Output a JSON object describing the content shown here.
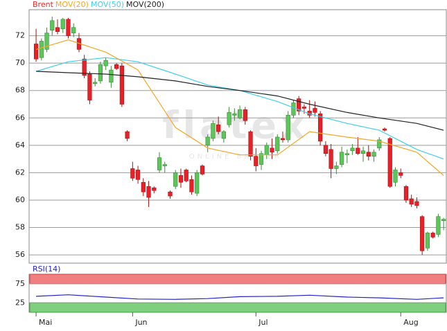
{
  "chart_data": {
    "type": "candlestick",
    "watermark": "flatex",
    "watermark_sub": "ONLINE BROKER",
    "xlim": [
      -1.3,
      76.5
    ],
    "xticks": [
      {
        "value": 0,
        "label": "Mai"
      },
      {
        "value": 18,
        "label": "Jun"
      },
      {
        "value": 41,
        "label": "Jul"
      },
      {
        "value": 68,
        "label": "Aug"
      }
    ],
    "ylim": [
      55.4,
      73.9
    ],
    "yticks": [
      56,
      58,
      60,
      62,
      64,
      66,
      68,
      70,
      72
    ],
    "grid": true,
    "up_color": "#5cc65a",
    "down_color": "#e8202a",
    "series": [
      {
        "name": "Brent",
        "color": "#e32b2b",
        "ohlc": [
          [
            71.4,
            72.5,
            70.1,
            70.3
          ],
          [
            70.4,
            71.8,
            70.2,
            71.6
          ],
          [
            71.0,
            72.6,
            70.8,
            72.2
          ],
          [
            72.4,
            73.4,
            72.0,
            73.1
          ],
          [
            72.6,
            73.2,
            72.1,
            72.3
          ],
          [
            72.5,
            73.3,
            72.2,
            73.2
          ],
          [
            73.2,
            73.3,
            71.8,
            72.0
          ],
          [
            72.2,
            72.9,
            71.9,
            72.6
          ],
          [
            71.8,
            72.2,
            70.8,
            71.0
          ],
          [
            70.3,
            70.6,
            68.9,
            69.1
          ],
          [
            69.2,
            69.4,
            67.0,
            67.3
          ],
          [
            68.5,
            68.9,
            68.3,
            68.6
          ],
          [
            68.7,
            70.1,
            68.5,
            69.9
          ],
          [
            69.8,
            70.4,
            69.5,
            70.2
          ],
          [
            68.6,
            69.8,
            68.2,
            69.5
          ],
          [
            69.9,
            70.0,
            69.5,
            69.6
          ],
          [
            69.8,
            70.0,
            66.8,
            67.0
          ],
          [
            65.0,
            65.1,
            64.3,
            64.5
          ],
          [
            62.3,
            62.8,
            61.4,
            61.6
          ],
          [
            62.2,
            62.5,
            61.2,
            61.5
          ],
          [
            61.3,
            61.6,
            60.3,
            60.6
          ],
          [
            61.0,
            61.4,
            59.5,
            60.2
          ],
          [
            60.9,
            61.0,
            60.5,
            60.7
          ],
          [
            62.2,
            63.5,
            62.0,
            63.1
          ],
          [
            62.5,
            62.8,
            62.0,
            62.6
          ],
          [
            60.6,
            60.7,
            60.1,
            60.3
          ],
          [
            61.0,
            62.2,
            60.8,
            62.0
          ],
          [
            61.8,
            62.3,
            60.9,
            61.3
          ],
          [
            62.2,
            62.3,
            61.3,
            61.4
          ],
          [
            61.5,
            61.8,
            60.4,
            60.6
          ],
          [
            60.5,
            62.2,
            60.3,
            62.0
          ],
          [
            62.5,
            62.6,
            61.8,
            61.9
          ],
          [
            64.0,
            64.8,
            63.5,
            64.6
          ],
          [
            64.5,
            65.8,
            64.3,
            65.6
          ],
          [
            65.5,
            66.1,
            64.8,
            65.0
          ],
          [
            64.5,
            65.1,
            64.2,
            65.0
          ],
          [
            65.5,
            66.8,
            65.3,
            66.4
          ],
          [
            66.2,
            66.7,
            65.8,
            66.3
          ],
          [
            66.0,
            66.9,
            65.9,
            66.6
          ],
          [
            66.6,
            66.8,
            65.5,
            65.8
          ],
          [
            65.0,
            65.1,
            62.9,
            63.2
          ],
          [
            63.2,
            63.8,
            62.1,
            62.5
          ],
          [
            62.6,
            63.6,
            62.2,
            63.4
          ],
          [
            63.3,
            64.2,
            63.0,
            64.0
          ],
          [
            63.8,
            64.5,
            63.0,
            63.5
          ],
          [
            63.6,
            64.8,
            63.4,
            64.6
          ],
          [
            64.5,
            65.0,
            64.2,
            64.4
          ],
          [
            64.4,
            66.5,
            64.2,
            66.2
          ],
          [
            66.2,
            67.3,
            66.0,
            67.1
          ],
          [
            67.4,
            67.6,
            66.2,
            66.5
          ],
          [
            66.8,
            67.0,
            66.3,
            66.7
          ],
          [
            66.5,
            67.3,
            66.0,
            66.2
          ],
          [
            66.7,
            67.2,
            66.1,
            66.4
          ],
          [
            66.3,
            66.5,
            64.0,
            64.3
          ],
          [
            64.0,
            64.3,
            63.2,
            63.4
          ],
          [
            63.7,
            64.1,
            61.6,
            62.3
          ],
          [
            62.3,
            62.8,
            61.9,
            62.5
          ],
          [
            62.6,
            63.9,
            62.4,
            63.5
          ],
          [
            63.3,
            63.7,
            62.7,
            63.4
          ],
          [
            63.6,
            64.1,
            63.3,
            63.8
          ],
          [
            63.8,
            64.6,
            63.3,
            63.4
          ],
          [
            63.4,
            63.9,
            62.8,
            63.6
          ],
          [
            63.5,
            64.0,
            62.9,
            63.2
          ],
          [
            63.2,
            63.7,
            62.8,
            63.5
          ],
          [
            63.8,
            64.6,
            63.6,
            64.4
          ],
          [
            65.2,
            65.3,
            65.0,
            65.1
          ],
          [
            64.5,
            64.6,
            60.9,
            61.0
          ],
          [
            61.3,
            62.4,
            61.0,
            62.2
          ],
          [
            62.0,
            62.3,
            61.6,
            61.8
          ],
          [
            61.0,
            61.1,
            59.8,
            60.0
          ],
          [
            60.1,
            60.4,
            59.5,
            59.7
          ],
          [
            59.9,
            60.2,
            59.4,
            59.6
          ],
          [
            58.8,
            58.9,
            56.0,
            56.3
          ],
          [
            56.5,
            57.7,
            56.3,
            57.6
          ],
          [
            57.6,
            57.7,
            57.2,
            57.3
          ],
          [
            57.5,
            59.0,
            57.3,
            58.8
          ],
          [
            58.5,
            58.7,
            57.8,
            58.6
          ]
        ]
      },
      {
        "name": "MOV(20)",
        "color": "#f5a623",
        "x": [
          0,
          6,
          13,
          19,
          26,
          32,
          38,
          45,
          51,
          58,
          64,
          71,
          76
        ],
        "values": [
          71.0,
          71.7,
          70.8,
          69.5,
          65.3,
          63.8,
          63.3,
          63.3,
          65.0,
          64.6,
          64.3,
          63.5,
          61.8
        ]
      },
      {
        "name": "MOV(50)",
        "color": "#3fd0e8",
        "x": [
          0,
          6,
          13,
          19,
          26,
          32,
          38,
          45,
          51,
          58,
          64,
          71,
          76
        ],
        "values": [
          69.4,
          70.1,
          70.4,
          70.1,
          69.2,
          68.4,
          68.0,
          67.2,
          66.3,
          65.6,
          65.1,
          63.7,
          63.0
        ]
      },
      {
        "name": "MOV(200)",
        "color": "#222222",
        "x": [
          0,
          6,
          13,
          19,
          26,
          32,
          38,
          45,
          51,
          58,
          64,
          71,
          76
        ],
        "values": [
          69.4,
          69.3,
          69.2,
          69.0,
          68.7,
          68.3,
          68.0,
          67.6,
          67.0,
          66.4,
          66.0,
          65.6,
          65.1
        ]
      }
    ],
    "rsi": {
      "name": "RSI(14)",
      "color": "#2222cc",
      "ylim": [
        0,
        100
      ],
      "yticks": [
        25,
        75
      ],
      "upper_color": "#f08080",
      "lower_color": "#7fcf7f",
      "x": [
        0,
        6,
        13,
        19,
        26,
        32,
        38,
        45,
        51,
        58,
        64,
        71,
        76
      ],
      "values": [
        42,
        46,
        40,
        35,
        34,
        36,
        41,
        42,
        45,
        40,
        38,
        34,
        38
      ]
    }
  }
}
